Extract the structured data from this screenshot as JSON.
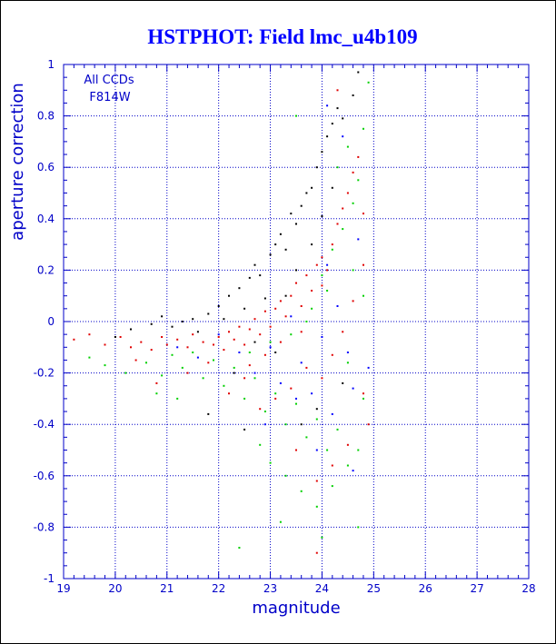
{
  "chart_data": {
    "type": "scatter",
    "title": "HSTPHOT: Field lmc_u4b109",
    "xlabel": "magnitude",
    "ylabel": "aperture correction",
    "xlim": [
      19,
      28
    ],
    "ylim": [
      -1,
      1
    ],
    "xticks": [
      "19",
      "20",
      "21",
      "22",
      "23",
      "24",
      "25",
      "26",
      "27",
      "28"
    ],
    "yticks": [
      "-1",
      "-0.8",
      "-0.6",
      "-0.4",
      "-0.2",
      "0",
      "0.2",
      "0.4",
      "0.6",
      "0.8",
      "1"
    ],
    "grid": true,
    "annotations": [
      "All CCDs",
      "F814W"
    ],
    "colors": {
      "axis": "#0000c8",
      "title": "#0000ff",
      "frame": "#000000"
    },
    "series": [
      {
        "color": "#000000",
        "points": [
          [
            20.0,
            -0.06
          ],
          [
            20.3,
            -0.03
          ],
          [
            20.7,
            -0.01
          ],
          [
            20.9,
            0.02
          ],
          [
            21.1,
            -0.02
          ],
          [
            21.3,
            0.0
          ],
          [
            21.5,
            0.01
          ],
          [
            21.6,
            -0.04
          ],
          [
            21.8,
            0.03
          ],
          [
            22.0,
            0.06
          ],
          [
            22.1,
            0.01
          ],
          [
            22.2,
            0.1
          ],
          [
            22.4,
            0.13
          ],
          [
            22.5,
            0.05
          ],
          [
            22.6,
            0.17
          ],
          [
            22.7,
            0.22
          ],
          [
            22.8,
            0.18
          ],
          [
            22.9,
            0.09
          ],
          [
            23.0,
            0.26
          ],
          [
            23.1,
            0.3
          ],
          [
            23.2,
            0.34
          ],
          [
            23.3,
            0.28
          ],
          [
            23.4,
            0.42
          ],
          [
            23.5,
            0.38
          ],
          [
            23.6,
            0.45
          ],
          [
            23.7,
            0.5
          ],
          [
            23.8,
            0.52
          ],
          [
            23.9,
            0.6
          ],
          [
            24.0,
            0.66
          ],
          [
            24.1,
            0.72
          ],
          [
            24.2,
            0.77
          ],
          [
            24.3,
            0.83
          ],
          [
            24.4,
            0.79
          ],
          [
            24.6,
            0.88
          ],
          [
            24.7,
            0.97
          ],
          [
            23.3,
            0.1
          ],
          [
            23.5,
            0.2
          ],
          [
            23.8,
            0.3
          ],
          [
            24.0,
            0.41
          ],
          [
            24.2,
            0.52
          ],
          [
            22.7,
            -0.08
          ],
          [
            23.1,
            -0.12
          ],
          [
            21.8,
            -0.36
          ],
          [
            22.5,
            -0.42
          ],
          [
            23.6,
            -0.4
          ],
          [
            23.9,
            -0.34
          ],
          [
            24.4,
            -0.24
          ],
          [
            22.3,
            -0.2
          ]
        ]
      },
      {
        "color": "#e00000",
        "points": [
          [
            19.2,
            -0.07
          ],
          [
            19.5,
            -0.05
          ],
          [
            19.8,
            -0.09
          ],
          [
            20.1,
            -0.06
          ],
          [
            20.3,
            -0.1
          ],
          [
            20.5,
            -0.08
          ],
          [
            20.7,
            -0.11
          ],
          [
            20.9,
            -0.06
          ],
          [
            21.0,
            -0.09
          ],
          [
            21.2,
            -0.07
          ],
          [
            21.4,
            -0.1
          ],
          [
            21.5,
            -0.05
          ],
          [
            21.7,
            -0.08
          ],
          [
            21.9,
            -0.09
          ],
          [
            22.0,
            -0.06
          ],
          [
            22.1,
            -0.11
          ],
          [
            22.2,
            -0.04
          ],
          [
            22.3,
            -0.07
          ],
          [
            22.4,
            -0.02
          ],
          [
            22.5,
            -0.09
          ],
          [
            22.6,
            -0.03
          ],
          [
            22.7,
            0.01
          ],
          [
            22.8,
            -0.05
          ],
          [
            22.9,
            0.04
          ],
          [
            23.0,
            -0.02
          ],
          [
            23.1,
            0.05
          ],
          [
            23.2,
            0.08
          ],
          [
            23.3,
            0.02
          ],
          [
            23.4,
            0.1
          ],
          [
            23.5,
            0.15
          ],
          [
            23.6,
            0.06
          ],
          [
            23.7,
            0.18
          ],
          [
            23.8,
            0.12
          ],
          [
            23.9,
            0.22
          ],
          [
            24.0,
            0.25
          ],
          [
            24.1,
            0.2
          ],
          [
            24.2,
            0.3
          ],
          [
            24.3,
            0.38
          ],
          [
            24.4,
            0.44
          ],
          [
            24.5,
            0.5
          ],
          [
            24.6,
            0.58
          ],
          [
            24.7,
            0.64
          ],
          [
            24.8,
            0.42
          ],
          [
            24.8,
            0.22
          ],
          [
            24.6,
            0.08
          ],
          [
            24.4,
            -0.04
          ],
          [
            24.2,
            -0.13
          ],
          [
            24.0,
            -0.22
          ],
          [
            23.7,
            -0.18
          ],
          [
            23.4,
            -0.26
          ],
          [
            23.1,
            -0.3
          ],
          [
            22.8,
            -0.34
          ],
          [
            22.5,
            -0.22
          ],
          [
            22.2,
            -0.28
          ],
          [
            21.8,
            -0.16
          ],
          [
            21.4,
            -0.2
          ],
          [
            20.8,
            -0.24
          ],
          [
            20.4,
            -0.15
          ],
          [
            24.8,
            -0.28
          ],
          [
            24.9,
            -0.4
          ],
          [
            24.5,
            -0.48
          ],
          [
            24.2,
            -0.56
          ],
          [
            23.9,
            -0.62
          ],
          [
            23.5,
            -0.5
          ],
          [
            23.9,
            -0.9
          ],
          [
            24.3,
            0.9
          ],
          [
            24.0,
            0.14
          ],
          [
            23.6,
            -0.04
          ],
          [
            23.2,
            -0.08
          ],
          [
            22.9,
            -0.13
          ],
          [
            22.6,
            -0.17
          ]
        ]
      },
      {
        "color": "#00d000",
        "points": [
          [
            19.5,
            -0.14
          ],
          [
            19.8,
            -0.17
          ],
          [
            20.2,
            -0.2
          ],
          [
            20.6,
            -0.16
          ],
          [
            20.9,
            -0.21
          ],
          [
            21.1,
            -0.13
          ],
          [
            21.3,
            -0.18
          ],
          [
            21.5,
            -0.12
          ],
          [
            21.7,
            -0.22
          ],
          [
            21.9,
            -0.15
          ],
          [
            22.1,
            -0.25
          ],
          [
            22.3,
            -0.18
          ],
          [
            22.5,
            -0.3
          ],
          [
            22.7,
            -0.22
          ],
          [
            22.9,
            -0.35
          ],
          [
            23.1,
            -0.28
          ],
          [
            23.3,
            -0.4
          ],
          [
            23.5,
            -0.32
          ],
          [
            23.7,
            -0.45
          ],
          [
            23.9,
            -0.38
          ],
          [
            24.1,
            -0.5
          ],
          [
            24.3,
            -0.42
          ],
          [
            24.5,
            -0.56
          ],
          [
            24.7,
            -0.5
          ],
          [
            22.8,
            -0.48
          ],
          [
            23.0,
            -0.55
          ],
          [
            23.3,
            -0.6
          ],
          [
            23.6,
            -0.66
          ],
          [
            23.9,
            -0.72
          ],
          [
            24.2,
            -0.64
          ],
          [
            22.4,
            -0.88
          ],
          [
            23.2,
            -0.78
          ],
          [
            24.7,
            -0.8
          ],
          [
            22.6,
            -0.12
          ],
          [
            23.0,
            -0.08
          ],
          [
            23.4,
            -0.05
          ],
          [
            23.8,
            0.05
          ],
          [
            24.0,
            0.18
          ],
          [
            24.2,
            0.28
          ],
          [
            24.4,
            0.36
          ],
          [
            24.6,
            0.46
          ],
          [
            24.7,
            0.55
          ],
          [
            24.8,
            0.75
          ],
          [
            24.9,
            0.93
          ],
          [
            24.5,
            0.68
          ],
          [
            24.3,
            0.6
          ],
          [
            24.1,
            0.12
          ],
          [
            23.7,
            0.0
          ],
          [
            24.6,
            0.2
          ],
          [
            24.8,
            0.1
          ],
          [
            24.5,
            -0.16
          ],
          [
            24.8,
            -0.3
          ],
          [
            21.2,
            -0.3
          ],
          [
            20.8,
            -0.28
          ],
          [
            23.5,
            0.8
          ],
          [
            24.0,
            -0.84
          ]
        ]
      },
      {
        "color": "#0000ff",
        "points": [
          [
            21.2,
            -0.1
          ],
          [
            21.6,
            -0.14
          ],
          [
            22.0,
            -0.05
          ],
          [
            22.4,
            -0.12
          ],
          [
            22.7,
            -0.2
          ],
          [
            23.0,
            -0.1
          ],
          [
            23.2,
            -0.24
          ],
          [
            23.4,
            0.02
          ],
          [
            23.6,
            -0.16
          ],
          [
            23.8,
            -0.28
          ],
          [
            24.0,
            -0.06
          ],
          [
            24.1,
            0.22
          ],
          [
            24.2,
            -0.36
          ],
          [
            24.3,
            0.06
          ],
          [
            24.5,
            -0.12
          ],
          [
            24.6,
            -0.26
          ],
          [
            24.7,
            0.32
          ],
          [
            24.9,
            -0.18
          ],
          [
            24.4,
            0.72
          ],
          [
            24.1,
            0.84
          ],
          [
            23.9,
            -0.5
          ],
          [
            24.6,
            -0.58
          ],
          [
            23.5,
            -0.3
          ],
          [
            22.9,
            -0.4
          ]
        ]
      }
    ]
  }
}
